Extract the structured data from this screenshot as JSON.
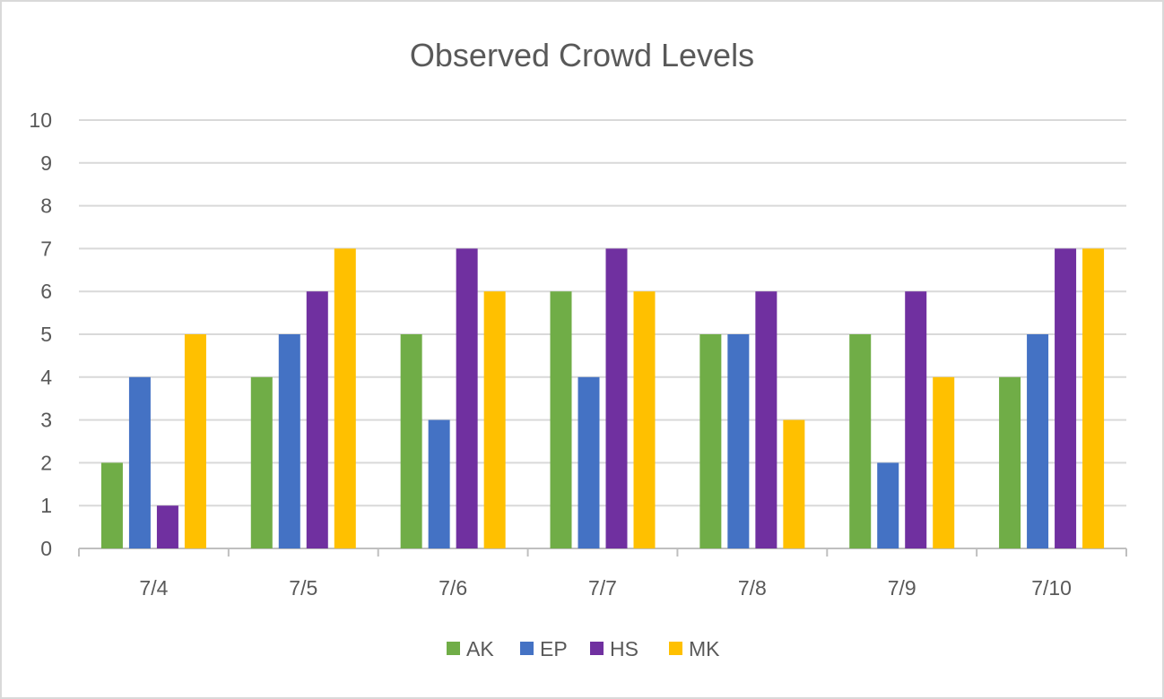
{
  "chart_data": {
    "type": "bar",
    "title": "Observed Crowd Levels",
    "xlabel": "",
    "ylabel": "",
    "ylim": [
      0,
      10
    ],
    "yticks": [
      "0",
      "1",
      "2",
      "3",
      "4",
      "5",
      "6",
      "7",
      "8",
      "9",
      "10"
    ],
    "grid": true,
    "legend_position": "bottom",
    "categories": [
      "7/4",
      "7/5",
      "7/6",
      "7/7",
      "7/8",
      "7/9",
      "7/10"
    ],
    "series": [
      {
        "name": "AK",
        "color": "#70ad47",
        "values": [
          2,
          4,
          5,
          6,
          5,
          5,
          4
        ]
      },
      {
        "name": "EP",
        "color": "#4472c4",
        "values": [
          4,
          5,
          3,
          4,
          5,
          2,
          5
        ]
      },
      {
        "name": "HS",
        "color": "#7030a0",
        "values": [
          1,
          6,
          7,
          7,
          6,
          6,
          7
        ]
      },
      {
        "name": "MK",
        "color": "#ffc000",
        "values": [
          5,
          7,
          6,
          6,
          3,
          4,
          7
        ]
      }
    ]
  }
}
